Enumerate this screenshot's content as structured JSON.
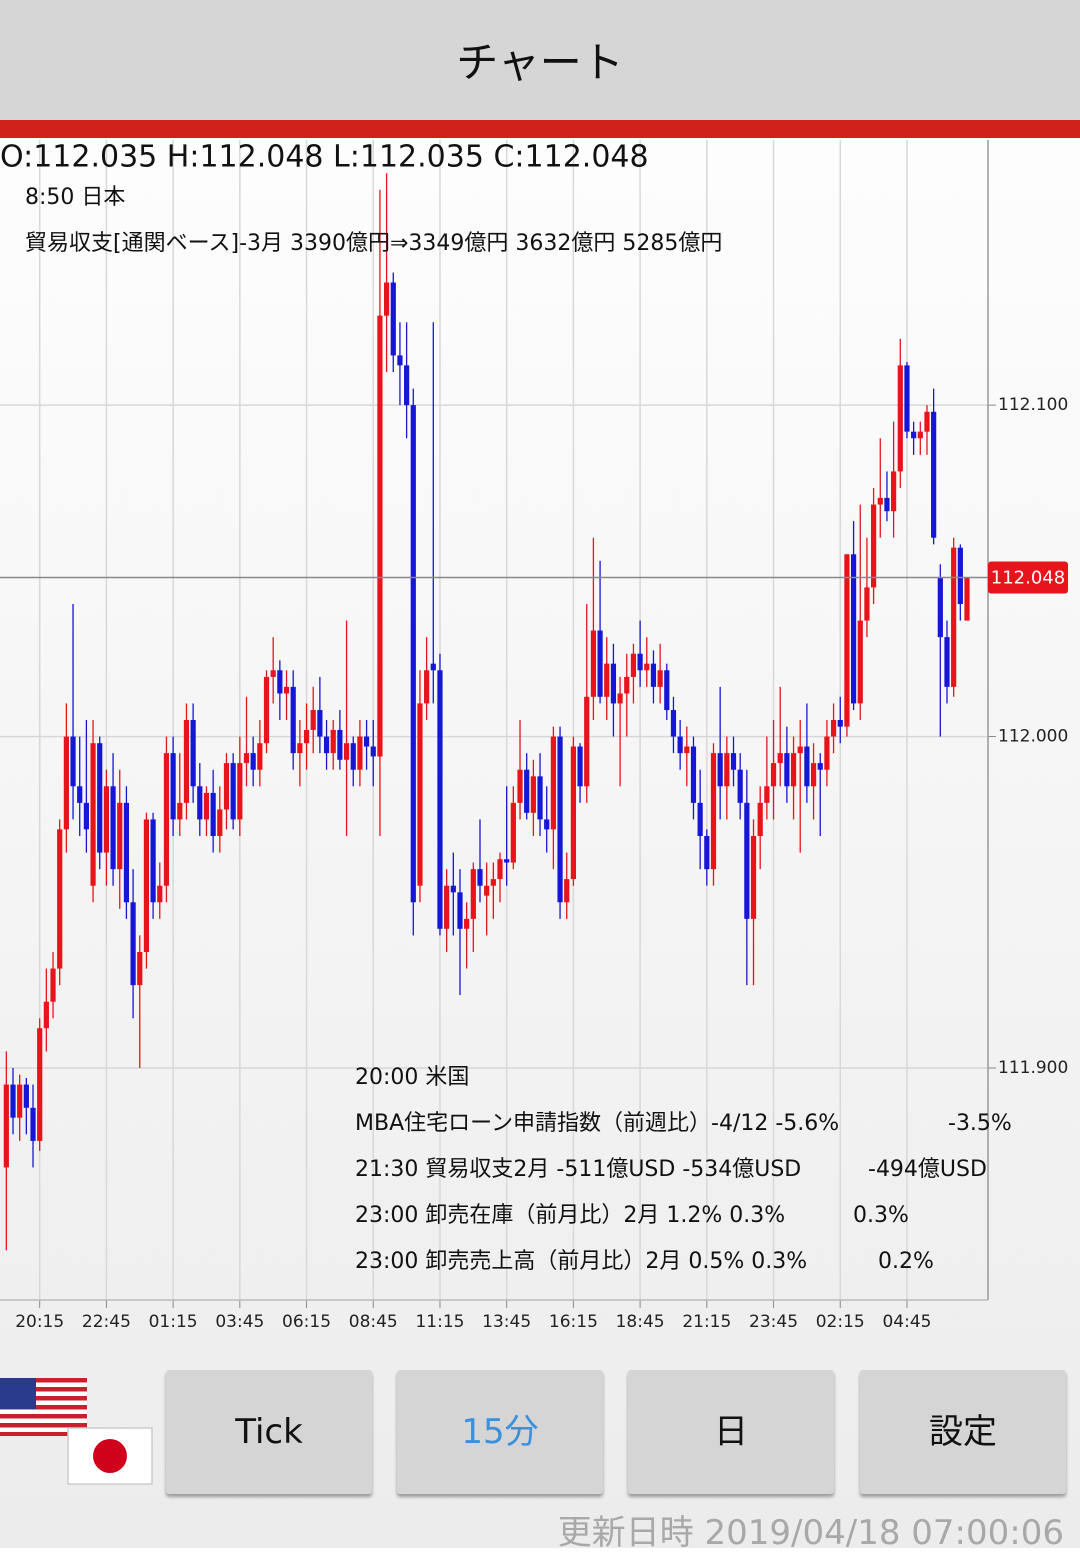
{
  "header": {
    "title": "チャート"
  },
  "chart_data": {
    "type": "candlestick",
    "ohlc_label": "O:112.035 H:112.048 L:112.035 C:112.048",
    "up_color": "#e8141c",
    "down_color": "#1616d6",
    "categories": [
      null,
      null,
      null,
      null,
      null,
      "20:15",
      null,
      null,
      null,
      null,
      null,
      null,
      null,
      null,
      null,
      "22:45",
      null,
      null,
      null,
      null,
      null,
      null,
      null,
      null,
      null,
      "01:15",
      null,
      null,
      null,
      null,
      null,
      null,
      null,
      null,
      null,
      "03:45",
      null,
      null,
      null,
      null,
      null,
      null,
      null,
      null,
      null,
      "06:15",
      null,
      null,
      null,
      null,
      null,
      null,
      null,
      null,
      null,
      "08:45",
      null,
      null,
      null,
      null,
      null,
      null,
      null,
      null,
      null,
      "11:15",
      null,
      null,
      null,
      null,
      null,
      null,
      null,
      null,
      null,
      "13:45",
      null,
      null,
      null,
      null,
      null,
      null,
      null,
      null,
      null,
      "16:15",
      null,
      null,
      null,
      null,
      null,
      null,
      null,
      null,
      null,
      "18:45",
      null,
      null,
      null,
      null,
      null,
      null,
      null,
      null,
      null,
      "21:15",
      null,
      null,
      null,
      null,
      null,
      null,
      null,
      null,
      null,
      "23:45",
      null,
      null,
      null,
      null,
      null,
      null,
      null,
      null,
      null,
      "02:15",
      null,
      null,
      null,
      null,
      null,
      null,
      null,
      null,
      null,
      "04:45",
      null,
      null,
      null,
      null,
      null,
      null,
      null,
      null,
      null
    ],
    "open": [
      111.87,
      111.895,
      111.885,
      111.895,
      111.888,
      111.878,
      111.912,
      111.92,
      111.93,
      111.972,
      112.0,
      111.985,
      111.98,
      111.955,
      111.998,
      111.965,
      111.985,
      111.96,
      111.98,
      111.95,
      111.925,
      111.935,
      111.975,
      111.95,
      111.955,
      111.995,
      111.975,
      111.98,
      112.005,
      111.985,
      111.975,
      111.983,
      111.97,
      111.978,
      111.992,
      111.975,
      111.992,
      111.995,
      111.99,
      111.998,
      112.018,
      112.02,
      112.013,
      112.015,
      111.995,
      111.998,
      112.002,
      112.008,
      112.0,
      111.995,
      112.002,
      111.993,
      111.998,
      111.99,
      112.0,
      111.997,
      111.994,
      112.127,
      112.137,
      112.115,
      112.112,
      112.1,
      111.955,
      112.01,
      112.022,
      112.02,
      111.942,
      111.955,
      111.953,
      111.942,
      111.945,
      111.96,
      111.952,
      111.955,
      111.957,
      111.963,
      111.962,
      111.98,
      111.99,
      111.977,
      111.988,
      111.975,
      111.972,
      112.0,
      111.95,
      111.957,
      111.997,
      111.985,
      112.012,
      112.032,
      112.012,
      112.022,
      112.01,
      112.013,
      112.018,
      112.025,
      112.02,
      112.022,
      112.015,
      112.02,
      112.008,
      112.0,
      111.995,
      111.997,
      111.98,
      111.97,
      111.96,
      111.995,
      111.985,
      111.995,
      111.99,
      111.98,
      111.945,
      111.97,
      111.98,
      111.985,
      111.992,
      111.995,
      111.985,
      111.995,
      111.997,
      111.985,
      111.992,
      111.99,
      112.0,
      112.005,
      112.003,
      112.055,
      112.01,
      112.035,
      112.045,
      112.07,
      112.072,
      112.068,
      112.08,
      112.112,
      112.092,
      112.09,
      112.092,
      112.098,
      112.048,
      112.03,
      112.015,
      112.057,
      112.035
    ],
    "high": [
      111.905,
      111.9,
      111.898,
      111.897,
      111.895,
      111.915,
      111.93,
      111.935,
      111.975,
      112.01,
      112.04,
      112.0,
      112.005,
      112.005,
      112.0,
      111.99,
      111.995,
      111.99,
      111.985,
      111.96,
      111.94,
      111.977,
      111.977,
      111.962,
      112.0,
      112.0,
      111.995,
      112.01,
      112.01,
      111.992,
      111.985,
      111.99,
      111.985,
      111.995,
      111.995,
      112.0,
      112.012,
      112.0,
      112.005,
      112.02,
      112.03,
      112.023,
      112.02,
      112.02,
      112.005,
      112.01,
      112.015,
      112.018,
      112.005,
      112.005,
      112.008,
      112.035,
      112.0,
      112.005,
      112.005,
      112.005,
      112.165,
      112.17,
      112.14,
      112.125,
      112.125,
      112.105,
      112.02,
      112.03,
      112.125,
      112.025,
      111.96,
      111.965,
      111.96,
      111.95,
      111.962,
      111.975,
      111.962,
      111.962,
      111.965,
      111.985,
      111.985,
      112.005,
      111.995,
      111.993,
      111.995,
      111.985,
      112.003,
      112.003,
      111.965,
      112.0,
      111.998,
      112.04,
      112.06,
      112.053,
      112.03,
      112.028,
      112.018,
      112.025,
      112.028,
      112.035,
      112.03,
      112.026,
      112.028,
      112.022,
      112.012,
      112.005,
      112.003,
      112.0,
      111.99,
      111.972,
      111.998,
      112.015,
      112.0,
      112.0,
      111.995,
      111.99,
      111.975,
      111.985,
      112.0,
      112.005,
      112.015,
      112.003,
      112.0,
      112.005,
      112.01,
      111.998,
      111.995,
      112.005,
      112.01,
      112.012,
      112.055,
      112.065,
      112.07,
      112.06,
      112.075,
      112.09,
      112.08,
      112.095,
      112.12,
      112.113,
      112.095,
      112.095,
      112.1,
      112.105,
      112.052,
      112.035,
      112.06,
      112.058,
      112.048
    ],
    "low": [
      111.845,
      111.88,
      111.878,
      111.88,
      111.87,
      111.875,
      111.905,
      111.915,
      111.925,
      111.965,
      111.975,
      111.97,
      111.965,
      111.95,
      111.96,
      111.955,
      111.955,
      111.948,
      111.945,
      111.915,
      111.9,
      111.93,
      111.945,
      111.945,
      111.95,
      111.97,
      111.97,
      111.975,
      111.98,
      111.97,
      111.97,
      111.965,
      111.965,
      111.972,
      111.972,
      111.97,
      111.985,
      111.985,
      111.985,
      111.995,
      112.01,
      112.005,
      112.005,
      111.99,
      111.985,
      111.99,
      111.995,
      111.995,
      111.99,
      111.99,
      111.99,
      111.97,
      111.985,
      111.985,
      111.99,
      111.985,
      111.97,
      112.11,
      112.11,
      112.1,
      112.09,
      111.94,
      111.95,
      112.005,
      112.01,
      111.94,
      111.935,
      111.94,
      111.922,
      111.93,
      111.935,
      111.95,
      111.94,
      111.945,
      111.95,
      111.955,
      111.96,
      111.975,
      111.975,
      111.97,
      111.97,
      111.965,
      111.96,
      111.945,
      111.945,
      111.955,
      111.98,
      111.98,
      112.005,
      112.01,
      112.005,
      112.0,
      111.985,
      112.0,
      112.01,
      112.015,
      112.015,
      112.01,
      112.01,
      112.005,
      111.995,
      111.99,
      111.985,
      111.975,
      111.96,
      111.955,
      111.955,
      111.975,
      111.975,
      111.985,
      111.975,
      111.925,
      111.925,
      111.96,
      111.975,
      111.975,
      111.985,
      111.98,
      111.975,
      111.965,
      111.98,
      111.975,
      111.97,
      111.985,
      111.995,
      111.998,
      112.0,
      112.008,
      112.005,
      112.03,
      112.04,
      112.06,
      112.065,
      112.06,
      112.075,
      112.09,
      112.085,
      112.085,
      112.085,
      112.058,
      112.0,
      112.01,
      112.012,
      112.035,
      112.035
    ],
    "close": [
      111.895,
      111.885,
      111.895,
      111.888,
      111.878,
      111.912,
      111.92,
      111.93,
      111.972,
      112.0,
      111.985,
      111.98,
      111.972,
      111.998,
      111.965,
      111.985,
      111.96,
      111.98,
      111.95,
      111.925,
      111.935,
      111.975,
      111.95,
      111.955,
      111.995,
      111.975,
      111.98,
      112.005,
      111.985,
      111.975,
      111.983,
      111.97,
      111.978,
      111.992,
      111.975,
      111.992,
      111.995,
      111.99,
      111.998,
      112.018,
      112.02,
      112.013,
      112.015,
      111.995,
      111.998,
      112.002,
      112.008,
      112.0,
      111.995,
      112.002,
      111.993,
      111.998,
      111.99,
      112.0,
      111.997,
      111.994,
      112.127,
      112.137,
      112.115,
      112.112,
      112.1,
      111.95,
      112.01,
      112.02,
      112.02,
      111.942,
      111.955,
      111.953,
      111.942,
      111.945,
      111.96,
      111.955,
      111.955,
      111.957,
      111.963,
      111.962,
      111.98,
      111.99,
      111.977,
      111.988,
      111.975,
      111.972,
      112.0,
      111.95,
      111.957,
      111.997,
      111.985,
      112.012,
      112.032,
      112.012,
      112.022,
      112.01,
      112.013,
      112.018,
      112.025,
      112.02,
      112.022,
      112.015,
      112.02,
      112.008,
      112.0,
      111.995,
      111.997,
      111.98,
      111.97,
      111.96,
      111.995,
      111.985,
      111.995,
      111.99,
      111.98,
      111.945,
      111.97,
      111.98,
      111.985,
      111.992,
      111.995,
      111.985,
      111.995,
      111.997,
      111.985,
      111.992,
      111.99,
      112.0,
      112.005,
      112.003,
      112.055,
      112.01,
      112.035,
      112.045,
      112.07,
      112.072,
      112.068,
      112.08,
      112.112,
      112.092,
      112.09,
      112.092,
      112.098,
      112.06,
      112.03,
      112.015,
      112.057,
      112.04,
      112.048
    ],
    "ylim": [
      111.83,
      112.18
    ],
    "yticks": [
      {
        "value": 111.9,
        "label": "111.900"
      },
      {
        "value": 112.0,
        "label": "112.000"
      },
      {
        "value": 112.1,
        "label": "112.100"
      }
    ],
    "last_price": 112.048,
    "grid": true,
    "events_top": [
      "8:50 日本",
      "貿易収支[通関ベース]-3月 3390億円⇒3349億円 3632億円 5285億円"
    ],
    "events_bottom": [
      {
        "text": "20:00 米国"
      },
      {
        "text": "MBA住宅ローン申請指数（前週比）-4/12 -5.6%",
        "result": "-3.5%"
      },
      {
        "text": "21:30 貿易収支2月 -511億USD -534億USD",
        "result": "-494億USD"
      },
      {
        "text": "23:00 卸売在庫（前月比）2月 1.2% 0.3%",
        "result": "0.3%"
      },
      {
        "text": "23:00 卸売売上高（前月比）2月 0.5% 0.3%",
        "result": "0.2%"
      }
    ]
  },
  "buttons": [
    "Tick",
    "15分",
    "日",
    "設定"
  ],
  "footer": {
    "updated": "更新日時 2019/04/18 07:00:06"
  }
}
